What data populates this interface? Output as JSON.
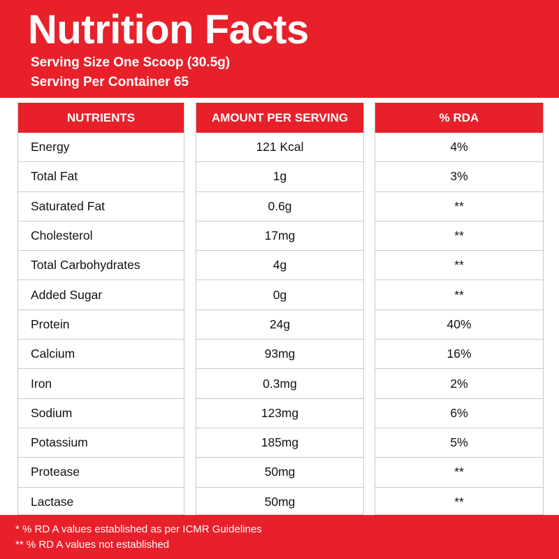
{
  "header": {
    "title": "Nutrition Facts",
    "serving_size": "Serving Size One Scoop (30.5g)",
    "servings_per_container": "Serving Per Container 65"
  },
  "columns": {
    "nutrients": "NUTRIENTS",
    "amount": "AMOUNT PER SERVING",
    "rda": "% RDA"
  },
  "rows": [
    {
      "nutrient": "Energy",
      "amount": "121 Kcal",
      "rda": "4%"
    },
    {
      "nutrient": "Total Fat",
      "amount": "1g",
      "rda": "3%"
    },
    {
      "nutrient": "Saturated Fat",
      "amount": "0.6g",
      "rda": "**"
    },
    {
      "nutrient": "Cholesterol",
      "amount": "17mg",
      "rda": "**"
    },
    {
      "nutrient": "Total Carbohydrates",
      "amount": "4g",
      "rda": "**"
    },
    {
      "nutrient": "Added Sugar",
      "amount": "0g",
      "rda": "**"
    },
    {
      "nutrient": "Protein",
      "amount": "24g",
      "rda": "40%"
    },
    {
      "nutrient": "Calcium",
      "amount": "93mg",
      "rda": "16%"
    },
    {
      "nutrient": "Iron",
      "amount": "0.3mg",
      "rda": "2%"
    },
    {
      "nutrient": "Sodium",
      "amount": "123mg",
      "rda": "6%"
    },
    {
      "nutrient": "Potassium",
      "amount": "185mg",
      "rda": "5%"
    },
    {
      "nutrient": "Protease",
      "amount": "50mg",
      "rda": "**"
    },
    {
      "nutrient": "Lactase",
      "amount": "50mg",
      "rda": "**"
    }
  ],
  "footer": {
    "note1": "* % RD A values established as per ICMR Guidelines",
    "note2": "** % RD A values not established"
  },
  "colors": {
    "brand_red": "#e8202a",
    "text": "#111111",
    "grid": "#c9c9c9"
  }
}
